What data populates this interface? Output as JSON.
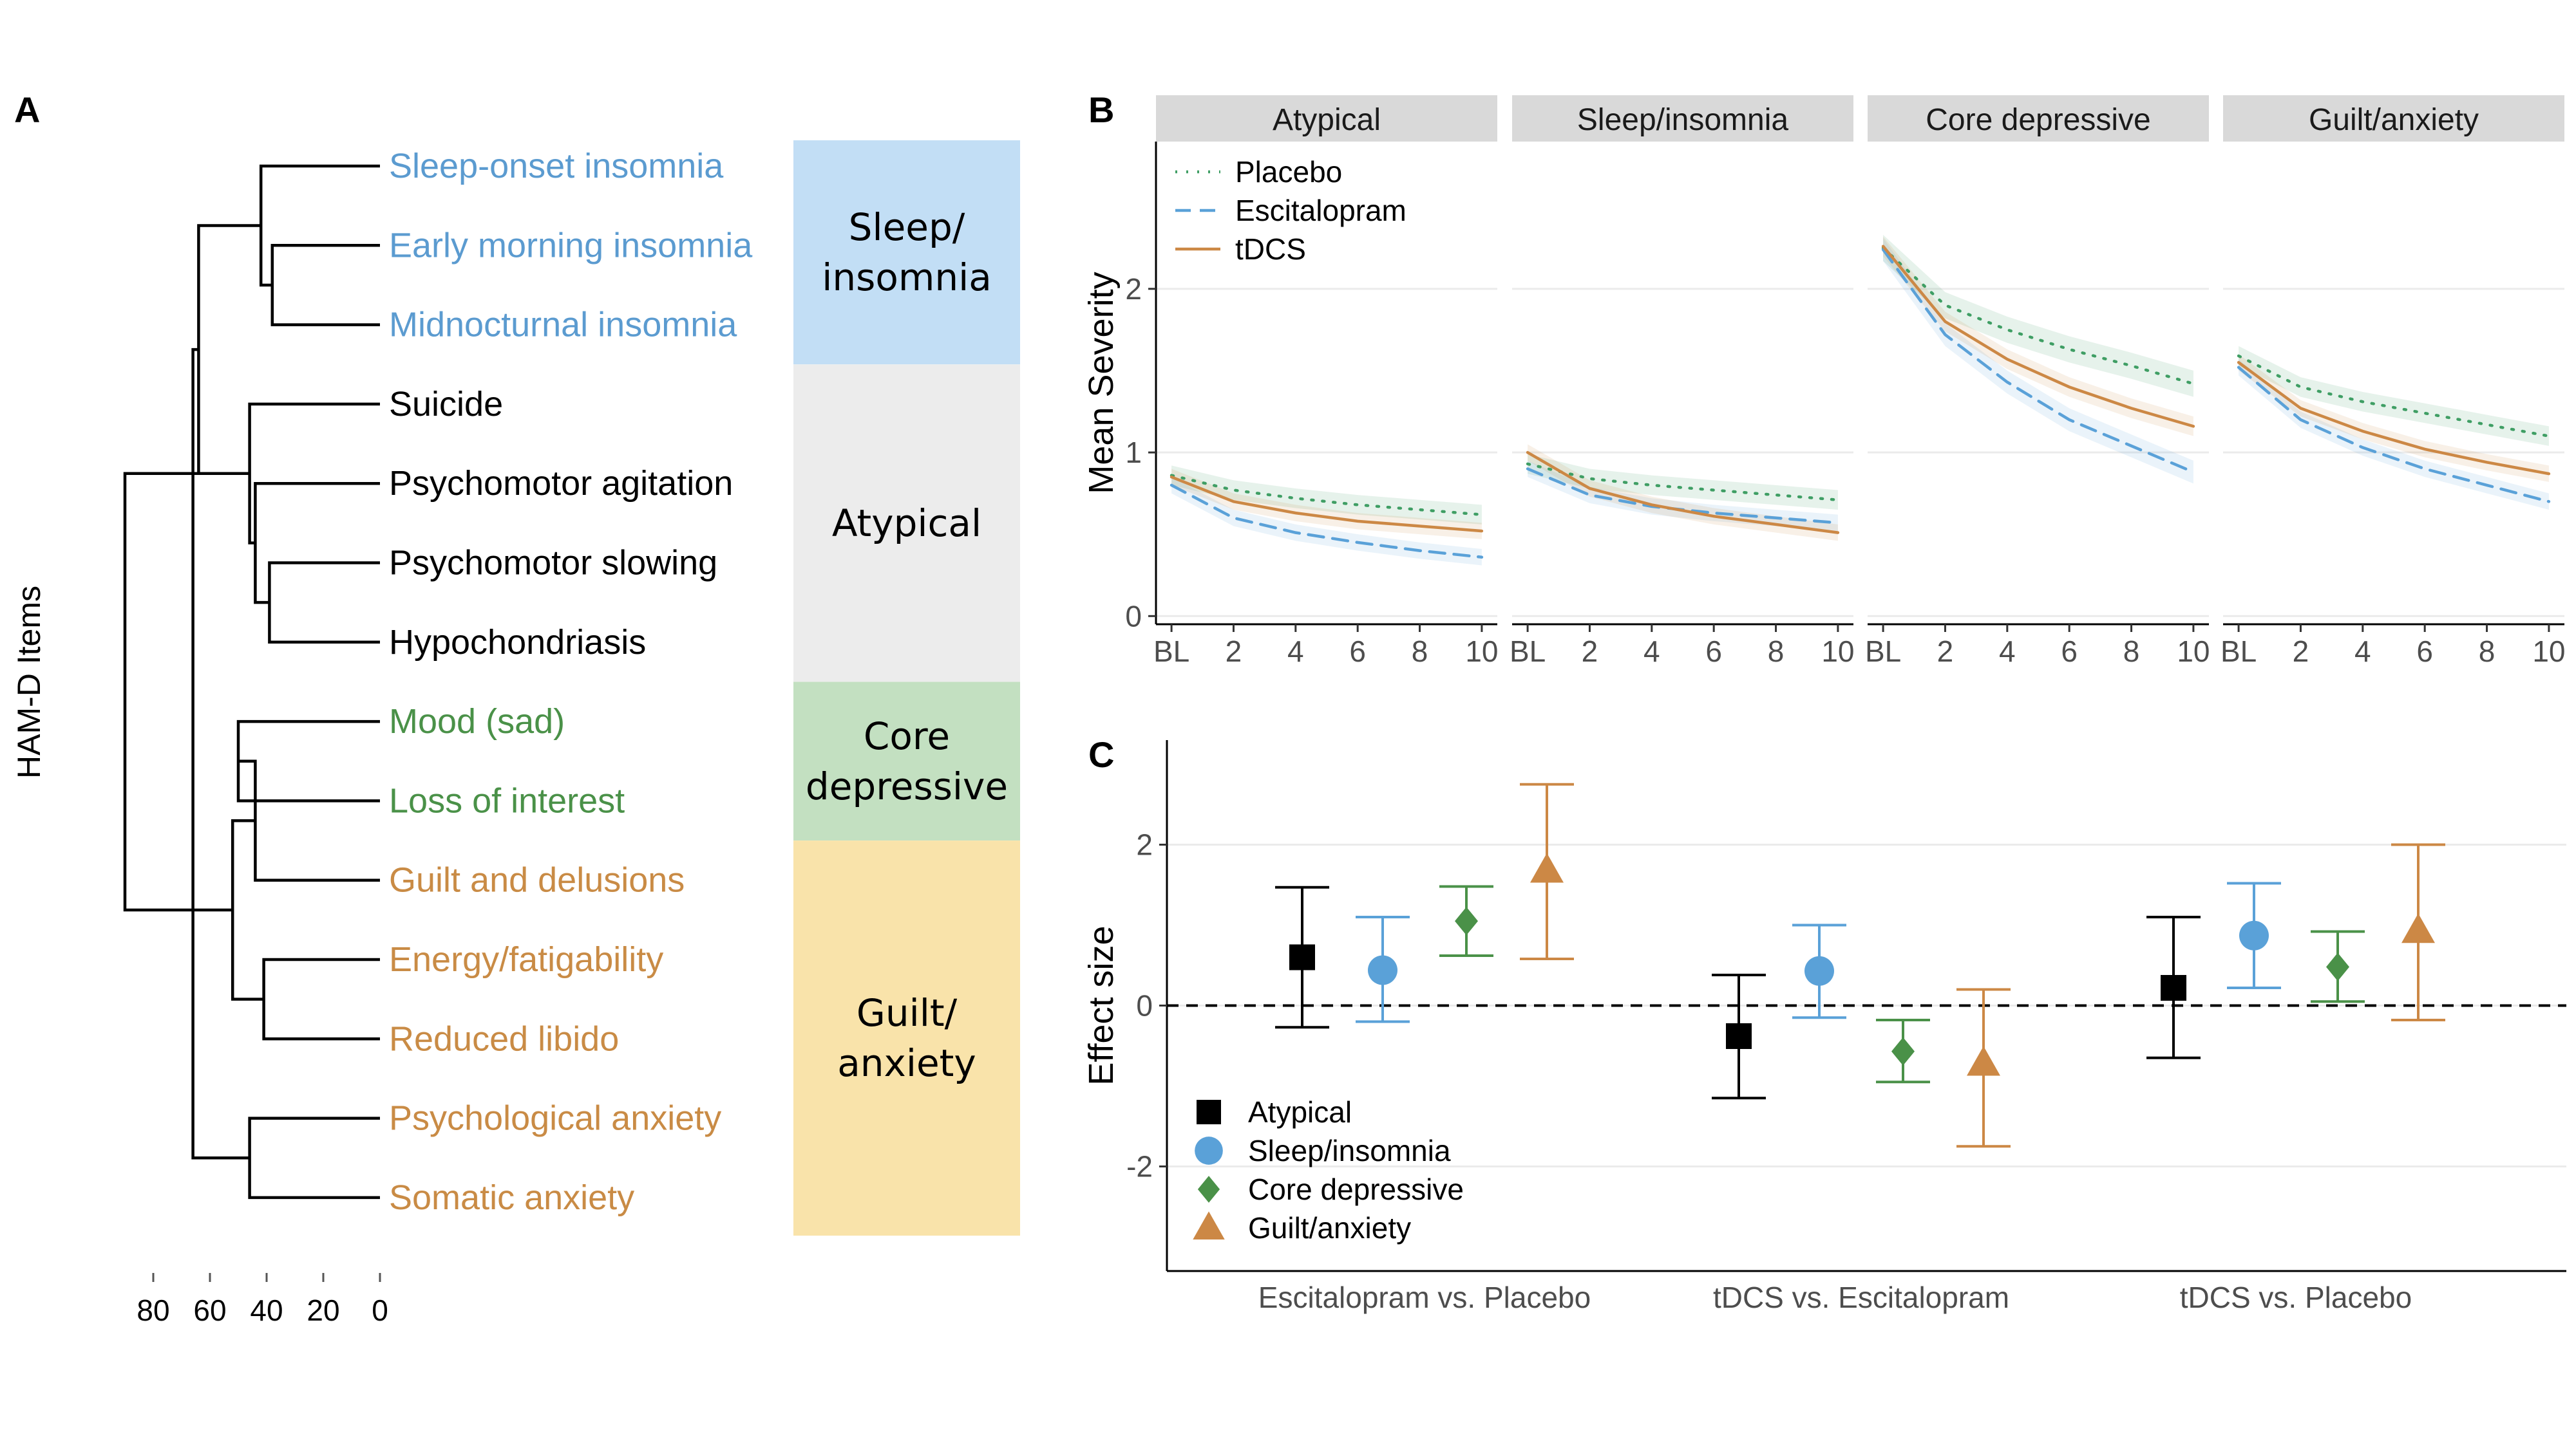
{
  "chart_data": [
    {
      "type": "dendrogram",
      "panel_label": "A",
      "ylabel": "HAM-D Items",
      "x_ticks": [
        "80",
        "60",
        "40",
        "20",
        "0"
      ],
      "x_tick_values": [
        80,
        60,
        40,
        20,
        0
      ],
      "x_range": [
        80,
        0
      ],
      "leaves": [
        {
          "label": "Sleep-onset insomnia",
          "cluster": 0
        },
        {
          "label": "Early morning insomnia",
          "cluster": 0
        },
        {
          "label": "Midnocturnal insomnia",
          "cluster": 0
        },
        {
          "label": "Suicide",
          "cluster": 1
        },
        {
          "label": "Psychomotor agitation",
          "cluster": 1
        },
        {
          "label": "Psychomotor slowing",
          "cluster": 1
        },
        {
          "label": "Hypochondriasis",
          "cluster": 1
        },
        {
          "label": "Mood (sad)",
          "cluster": 2
        },
        {
          "label": "Loss of interest",
          "cluster": 2
        },
        {
          "label": "Guilt and delusions",
          "cluster": 3
        },
        {
          "label": "Energy/fatigability",
          "cluster": 3
        },
        {
          "label": "Reduced libido",
          "cluster": 3
        },
        {
          "label": "Psychological anxiety",
          "cluster": 3
        },
        {
          "label": "Somatic anxiety",
          "cluster": 3
        }
      ],
      "merges": [
        {
          "a": 1,
          "b": 2,
          "h": 38
        },
        {
          "a": 0,
          "b": 14,
          "h": 42
        },
        {
          "a": 5,
          "b": 6,
          "h": 39
        },
        {
          "a": 4,
          "b": 16,
          "h": 44
        },
        {
          "a": 3,
          "b": 17,
          "h": 46
        },
        {
          "a": 15,
          "b": 18,
          "h": 64
        },
        {
          "a": 7,
          "b": 8,
          "h": 50
        },
        {
          "a": 10,
          "b": 11,
          "h": 41
        },
        {
          "a": 9,
          "b": 20,
          "h": 44
        },
        {
          "a": 12,
          "b": 13,
          "h": 46
        },
        {
          "a": 21,
          "b": 22,
          "h": 52
        },
        {
          "a": 19,
          "b": 23,
          "h": 66
        },
        {
          "a": 18,
          "b": 24,
          "h": 90
        }
      ],
      "clusters": [
        {
          "lines": [
            "Sleep/",
            "insomnia"
          ],
          "color": "#c2def5",
          "label_color": "#5b9bd0",
          "start": 0,
          "end": 2
        },
        {
          "lines": [
            "Atypical"
          ],
          "color": "#ececec",
          "label_color": "#000000",
          "start": 3,
          "end": 6
        },
        {
          "lines": [
            "Core",
            "depressive"
          ],
          "color": "#c3e0c1",
          "label_color": "#4a9148",
          "start": 7,
          "end": 8
        },
        {
          "lines": [
            "Guilt/",
            "anxiety"
          ],
          "color": "#f9e3aa",
          "label_color": "#c98b45",
          "start": 9,
          "end": 13
        }
      ]
    },
    {
      "type": "line",
      "panel_label": "B",
      "ylabel": "Mean Severity",
      "ylim": [
        -0.05,
        2.9
      ],
      "y_ticks": [
        0,
        1,
        2
      ],
      "x": [
        "BL",
        "2",
        "4",
        "6",
        "8",
        "10"
      ],
      "x_values": [
        0,
        2,
        4,
        6,
        8,
        10
      ],
      "xlim": [
        -0.5,
        10.5
      ],
      "grid": true,
      "legend_position": "top-left",
      "legend": [
        {
          "name": "Placebo",
          "color": "#3f9e64",
          "dash": "dotted"
        },
        {
          "name": "Escitalopram",
          "color": "#5aa1d8",
          "dash": "dashed"
        },
        {
          "name": "tDCS",
          "color": "#cc8845",
          "dash": "solid"
        }
      ],
      "facets": [
        {
          "title": "Atypical",
          "series": [
            {
              "name": "Placebo",
              "values": [
                0.86,
                0.77,
                0.72,
                0.68,
                0.65,
                0.62
              ],
              "band": 0.06
            },
            {
              "name": "Escitalopram",
              "values": [
                0.8,
                0.6,
                0.51,
                0.45,
                0.4,
                0.36
              ],
              "band": 0.05
            },
            {
              "name": "tDCS",
              "values": [
                0.85,
                0.7,
                0.63,
                0.58,
                0.55,
                0.52
              ],
              "band": 0.05
            }
          ]
        },
        {
          "title": "Sleep/insomnia",
          "series": [
            {
              "name": "Placebo",
              "values": [
                0.93,
                0.84,
                0.8,
                0.77,
                0.74,
                0.71
              ],
              "band": 0.06
            },
            {
              "name": "Escitalopram",
              "values": [
                0.9,
                0.74,
                0.67,
                0.63,
                0.6,
                0.57
              ],
              "band": 0.05
            },
            {
              "name": "tDCS",
              "values": [
                1.0,
                0.78,
                0.68,
                0.61,
                0.56,
                0.51
              ],
              "band": 0.05
            }
          ]
        },
        {
          "title": "Core depressive",
          "series": [
            {
              "name": "Placebo",
              "values": [
                2.25,
                1.9,
                1.75,
                1.63,
                1.53,
                1.42
              ],
              "band": 0.08
            },
            {
              "name": "Escitalopram",
              "values": [
                2.24,
                1.72,
                1.43,
                1.2,
                1.04,
                0.88
              ],
              "band": 0.07
            },
            {
              "name": "tDCS",
              "values": [
                2.26,
                1.8,
                1.57,
                1.4,
                1.27,
                1.16
              ],
              "band": 0.06
            }
          ]
        },
        {
          "title": "Guilt/anxiety",
          "series": [
            {
              "name": "Placebo",
              "values": [
                1.59,
                1.4,
                1.31,
                1.24,
                1.17,
                1.1
              ],
              "band": 0.06
            },
            {
              "name": "Escitalopram",
              "values": [
                1.52,
                1.2,
                1.03,
                0.9,
                0.8,
                0.7
              ],
              "band": 0.05
            },
            {
              "name": "tDCS",
              "values": [
                1.55,
                1.27,
                1.13,
                1.02,
                0.94,
                0.87
              ],
              "band": 0.05
            }
          ]
        }
      ]
    },
    {
      "type": "errorbar",
      "panel_label": "C",
      "ylabel": "Effect size",
      "ylim": [
        -3.3,
        3.3
      ],
      "y_ticks": [
        -2,
        0,
        2
      ],
      "reference_line": 0,
      "grid": true,
      "legend_position": "bottom-left",
      "categories": [
        "Escitalopram vs. Placebo",
        "tDCS vs. Escitalopram",
        "tDCS vs. Placebo"
      ],
      "series": [
        {
          "name": "Atypical",
          "color": "#000000",
          "marker": "square",
          "values": [
            0.6,
            -0.38,
            0.22
          ],
          "lower": [
            -0.27,
            -1.15,
            -0.65
          ],
          "upper": [
            1.47,
            0.38,
            1.1
          ]
        },
        {
          "name": "Sleep/insomnia",
          "color": "#5aa1d8",
          "marker": "circle",
          "values": [
            0.44,
            0.43,
            0.87
          ],
          "lower": [
            -0.2,
            -0.15,
            0.22
          ],
          "upper": [
            1.1,
            1.0,
            1.52
          ]
        },
        {
          "name": "Core depressive",
          "color": "#4a9148",
          "marker": "diamond",
          "values": [
            1.05,
            -0.57,
            0.48
          ],
          "lower": [
            0.62,
            -0.95,
            0.05
          ],
          "upper": [
            1.48,
            -0.18,
            0.92
          ]
        },
        {
          "name": "Guilt/anxiety",
          "color": "#cc8845",
          "marker": "triangle",
          "values": [
            1.68,
            -0.72,
            0.93
          ],
          "lower": [
            0.58,
            -1.75,
            -0.18
          ],
          "upper": [
            2.75,
            0.2,
            2.0
          ]
        }
      ]
    }
  ]
}
